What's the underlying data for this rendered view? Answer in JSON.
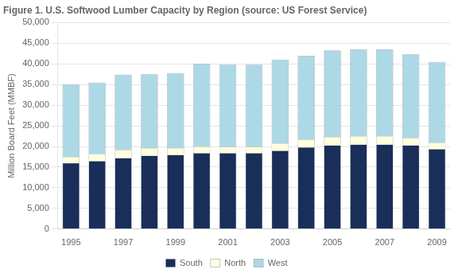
{
  "chart_data": {
    "type": "bar",
    "title": "Figure 1. U.S. Softwood Lumber Capacity by Region (source: US Forest Service)",
    "ylabel": "Million Board Feet (MMBF)",
    "categories": [
      1995,
      null,
      1997,
      null,
      1999,
      null,
      2001,
      null,
      2003,
      null,
      2005,
      null,
      2007,
      null,
      2009
    ],
    "series": [
      {
        "name": "South",
        "color": "#1a2e5a",
        "values": [
          16000,
          16500,
          17200,
          17800,
          18000,
          18400,
          18400,
          18400,
          19000,
          19800,
          20300,
          20500,
          20500,
          20300,
          19400
        ]
      },
      {
        "name": "North",
        "color": "#ffffdd",
        "values": [
          1500,
          1700,
          2000,
          1800,
          1600,
          1600,
          1500,
          1500,
          1700,
          1800,
          2000,
          2000,
          2000,
          1800,
          1500
        ]
      },
      {
        "name": "West",
        "color": "#add8e6",
        "values": [
          17500,
          17300,
          18200,
          17900,
          18200,
          20000,
          19900,
          19900,
          20300,
          20400,
          21000,
          21000,
          21000,
          20200,
          19600
        ]
      }
    ],
    "stacked": true,
    "ylim": [
      0,
      50000
    ],
    "yticks": [
      0,
      {
        "value": 5000,
        "label": "5,000"
      },
      {
        "value": 10000,
        "label": "10,000"
      },
      {
        "value": 15000,
        "label": "15,000"
      },
      {
        "value": 20000,
        "label": "20,000"
      },
      {
        "value": 25000,
        "label": "25,000"
      },
      {
        "value": 30000,
        "label": "30,000"
      },
      {
        "value": 35000,
        "label": "35,000"
      },
      {
        "value": 40000,
        "label": "40,000"
      },
      {
        "value": 45000,
        "label": "45,000"
      },
      {
        "value": 50000,
        "label": "50,000"
      }
    ],
    "grid": true,
    "legend": "bottom"
  }
}
